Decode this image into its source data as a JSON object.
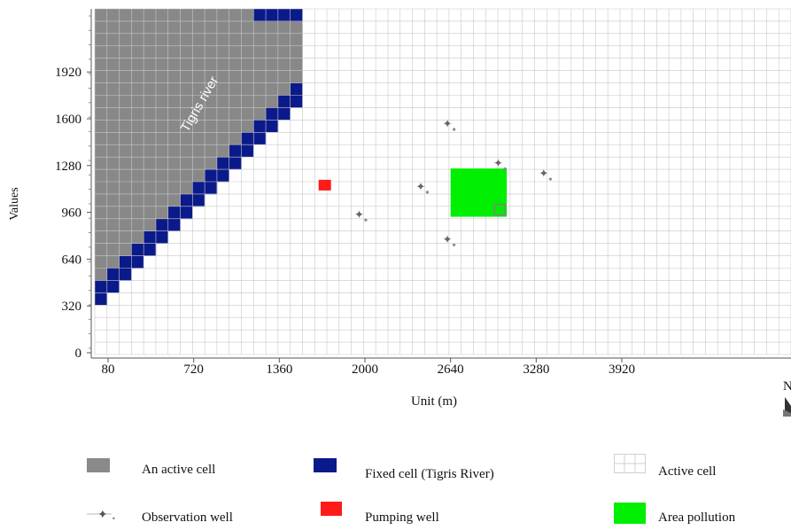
{
  "chart_data": {
    "type": "grid-map",
    "ylabel": "Values",
    "xlabel": "Unit (m)",
    "x_ticks": [
      80,
      720,
      1360,
      2000,
      2640,
      3280,
      3920
    ],
    "y_ticks": [
      0,
      320,
      640,
      960,
      1280,
      1600,
      1920
    ],
    "river_label": "Tigris river",
    "north_label": "N",
    "grid": true,
    "pumping_well": {
      "x": 1700,
      "y": 1140
    },
    "pollution_area": {
      "x_range": [
        2640,
        3060
      ],
      "y_range": [
        930,
        1260
      ]
    },
    "observation_wells": [
      {
        "name": "Observation well",
        "x": 2620,
        "y": 1570
      },
      {
        "name": "Observation well",
        "x": 3000,
        "y": 1300
      },
      {
        "name": "Observation well",
        "x": 3340,
        "y": 1230
      },
      {
        "name": "Observation well",
        "x": 2420,
        "y": 1140
      },
      {
        "name": "Observation well",
        "x": 1960,
        "y": 950
      },
      {
        "name": "Observation well",
        "x": 2620,
        "y": 780
      }
    ],
    "colors": {
      "active_cell": "#888888",
      "fixed_cell": "#0b1a8a",
      "pumping_well": "#ff1a1a",
      "pollution": "#00ee00",
      "grid_line": "#c8c8c8"
    }
  },
  "legend": {
    "active_cell_grey": "An active cell",
    "fixed_cell": "Fixed cell (Tigris River)",
    "active_cell": "Active cell",
    "observation_well": "Observation well",
    "pumping_well": "Pumping well",
    "area_pollution": "Area pollution"
  }
}
